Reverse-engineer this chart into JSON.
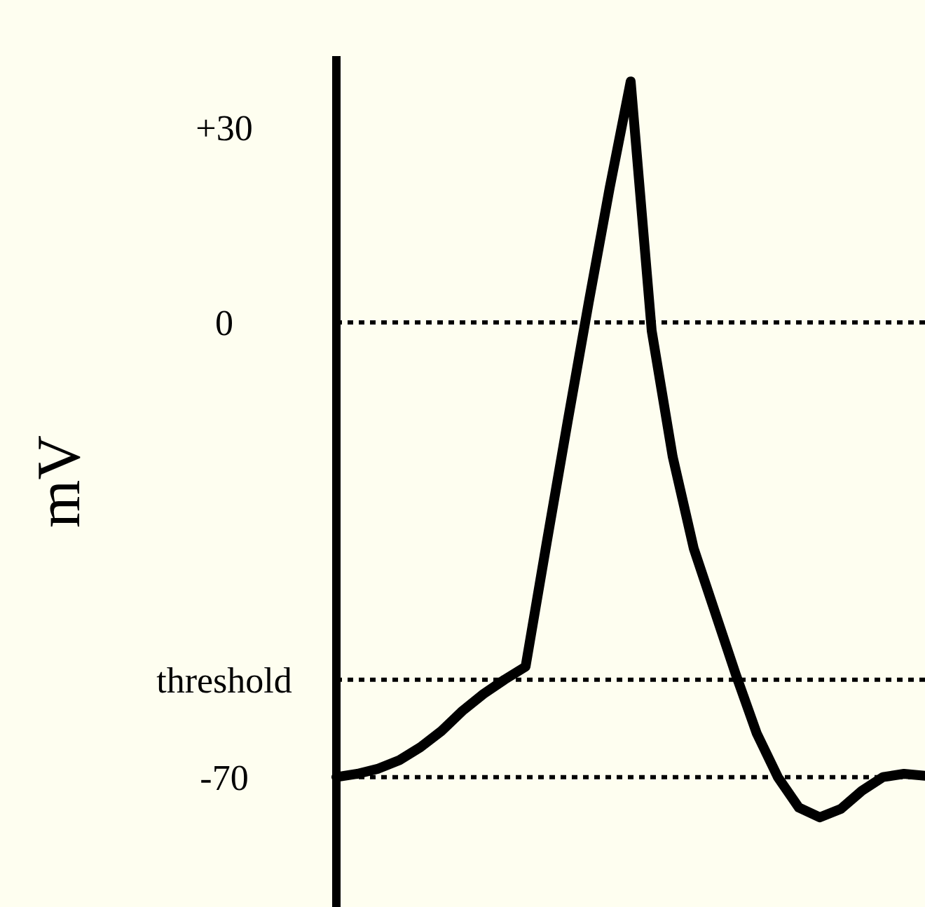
{
  "chart_data": {
    "type": "line",
    "ylabel": "mV",
    "categories": [
      null,
      null,
      null,
      null,
      null,
      null,
      null,
      null,
      null,
      null,
      null,
      null,
      null,
      null,
      null,
      null,
      null,
      null,
      null,
      null,
      null,
      null,
      null,
      null,
      null,
      null,
      null,
      null,
      null
    ],
    "series": [
      {
        "color": "#000000",
        "values": [
          -70,
          -69.5,
          -68.7,
          -67.4,
          -65.4,
          -62.9,
          -59.8,
          -57.2,
          -55,
          -53,
          -34,
          -15.3,
          3,
          20.7,
          37.1,
          -1.3,
          -20.7,
          -34.8,
          -44.5,
          -54.2,
          -63.3,
          -70,
          -74.7,
          -76.2,
          -74.9,
          -72.1,
          -70,
          -69.5,
          -69.8
        ]
      }
    ],
    "ylim": [
      -90,
      41
    ],
    "yticks": [
      {
        "value": 30,
        "label": "+30"
      },
      0,
      {
        "value": -55,
        "label": "threshold"
      },
      -70
    ],
    "ref_lines": [
      {
        "axis": "y",
        "value": 0,
        "color": "#000000",
        "line_style": "dotted"
      },
      {
        "axis": "y",
        "value": -55,
        "color": "#000000",
        "line_style": "dotted"
      },
      {
        "axis": "y",
        "value": -70,
        "color": "#000000",
        "line_style": "dotted"
      }
    ],
    "grid": false,
    "legend": false,
    "marker": "none"
  }
}
